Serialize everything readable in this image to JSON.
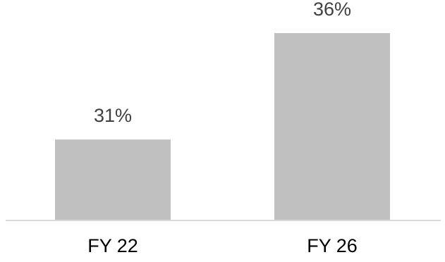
{
  "chart_data": {
    "type": "bar",
    "categories": [
      "FY 22",
      "FY 26"
    ],
    "values": [
      31,
      36
    ],
    "value_labels": [
      "31%",
      "36%"
    ],
    "ylim": [
      27.2,
      36
    ],
    "grid": false,
    "legend": "none",
    "bar_color": "#c0c0c0",
    "axis_color": "#d9d9d9",
    "label_color": "#404040",
    "category_label_color": "#000000"
  }
}
